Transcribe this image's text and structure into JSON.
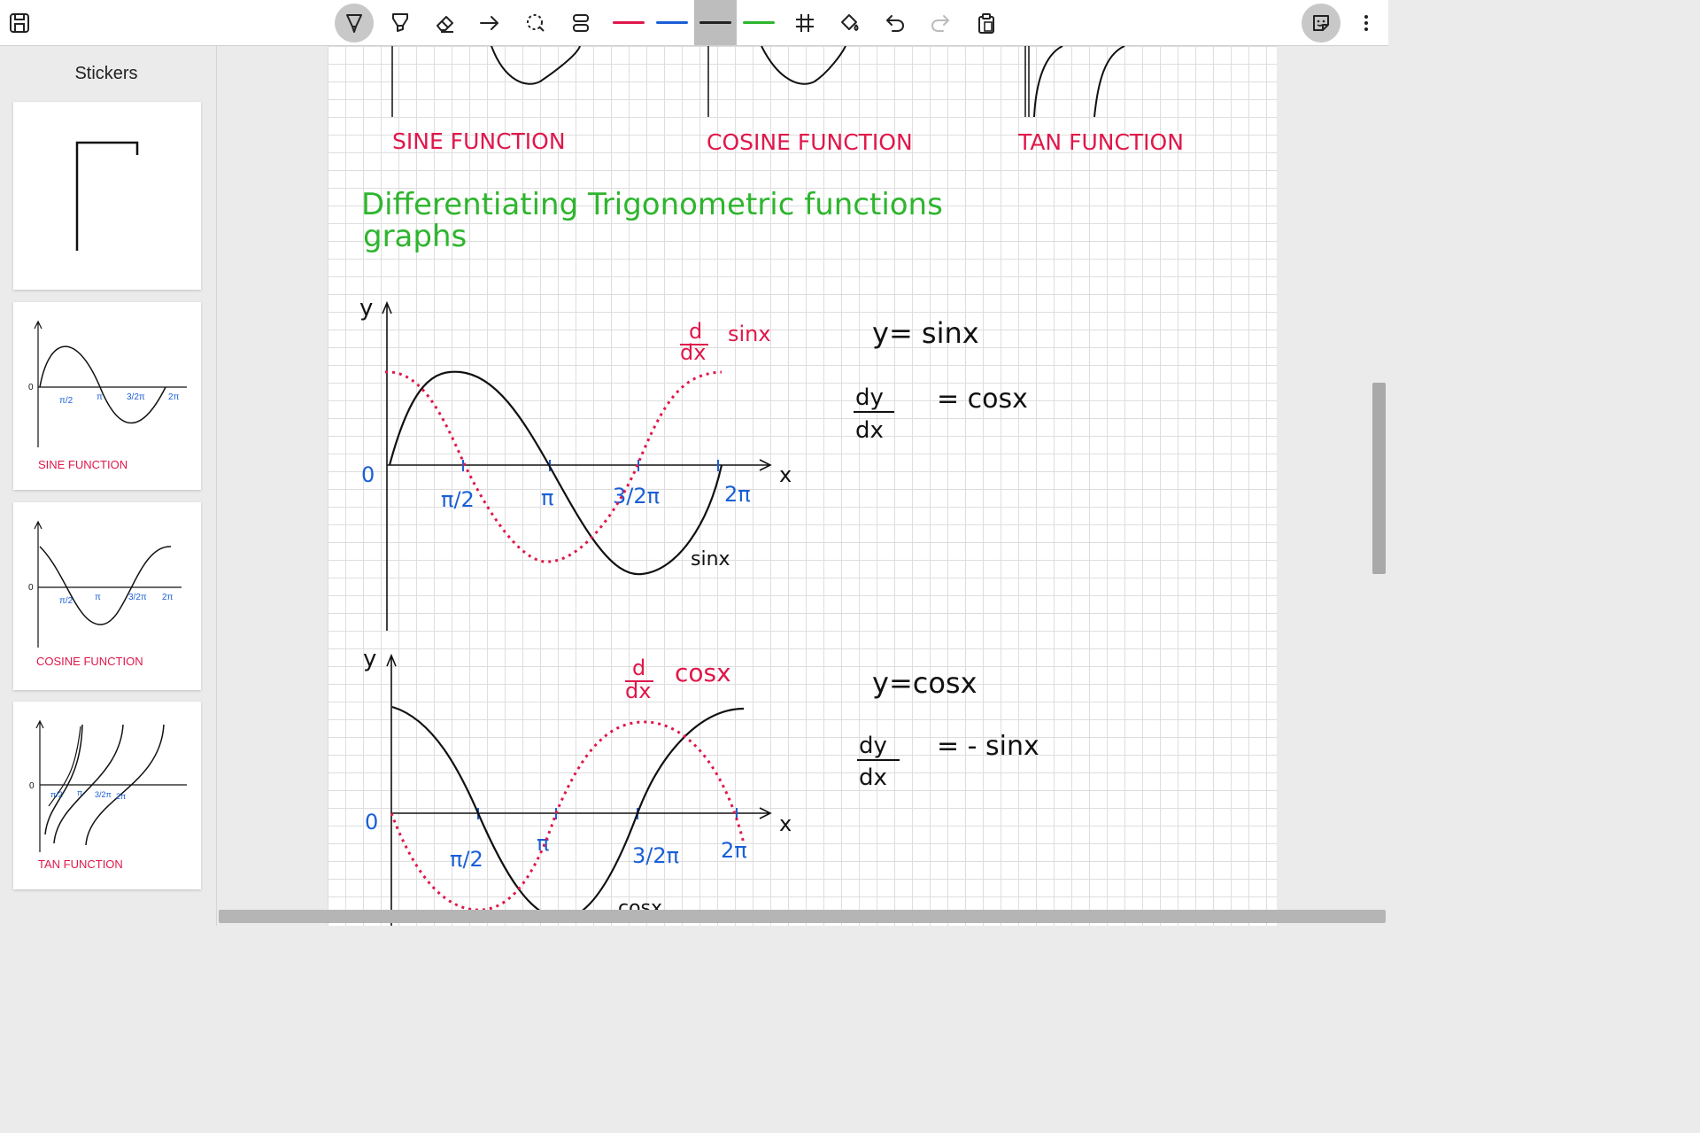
{
  "toolbar": {
    "save_icon": "save-icon",
    "tools": [
      "pen-icon",
      "highlighter-icon",
      "eraser-icon",
      "arrow-icon",
      "lasso-icon",
      "shapes-icon"
    ],
    "colors": [
      "#e0174a",
      "#1a5fd6",
      "#222222",
      "#2eb52e"
    ],
    "active_color": "#222222",
    "extra": [
      "grid-icon",
      "fill-icon",
      "undo-icon",
      "redo-icon",
      "clipboard-icon",
      "sticker-icon",
      "more-icon"
    ]
  },
  "sidebar": {
    "title": "Stickers",
    "stickers": [
      {
        "caption": ""
      },
      {
        "caption": "SINE FUNCTION"
      },
      {
        "caption": "COSINE FUNCTION"
      },
      {
        "caption": "TAN FUNCTION"
      }
    ]
  },
  "page": {
    "top_captions": [
      "SINE FUNCTION",
      "COSINE FUNCTION",
      "TAN FUNCTION"
    ],
    "heading_line1": "Differentiating Trigonometric functions",
    "heading_line2": "graphs",
    "graph1": {
      "y_axis": "y",
      "x_axis": "x",
      "origin": "0",
      "ticks": [
        "π/2",
        "π",
        "3/2π",
        "2π"
      ],
      "curve_label": "sinx",
      "deriv_num": "d",
      "deriv_den": "dx",
      "deriv_label": "sinx",
      "eq1": "y= sinx",
      "eq2_num": "dy",
      "eq2_den": "dx",
      "eq2_rhs": "= cosx"
    },
    "graph2": {
      "y_axis": "y",
      "x_axis": "x",
      "origin": "0",
      "ticks": [
        "π/2",
        "π",
        "3/2π",
        "2π"
      ],
      "curve_label": "cosx",
      "deriv_num": "d",
      "deriv_den": "dx",
      "deriv_label": "cosx",
      "eq1": "y=cosx",
      "eq2_num": "dy",
      "eq2_den": "dx",
      "eq2_rhs": "= - sinx"
    }
  }
}
